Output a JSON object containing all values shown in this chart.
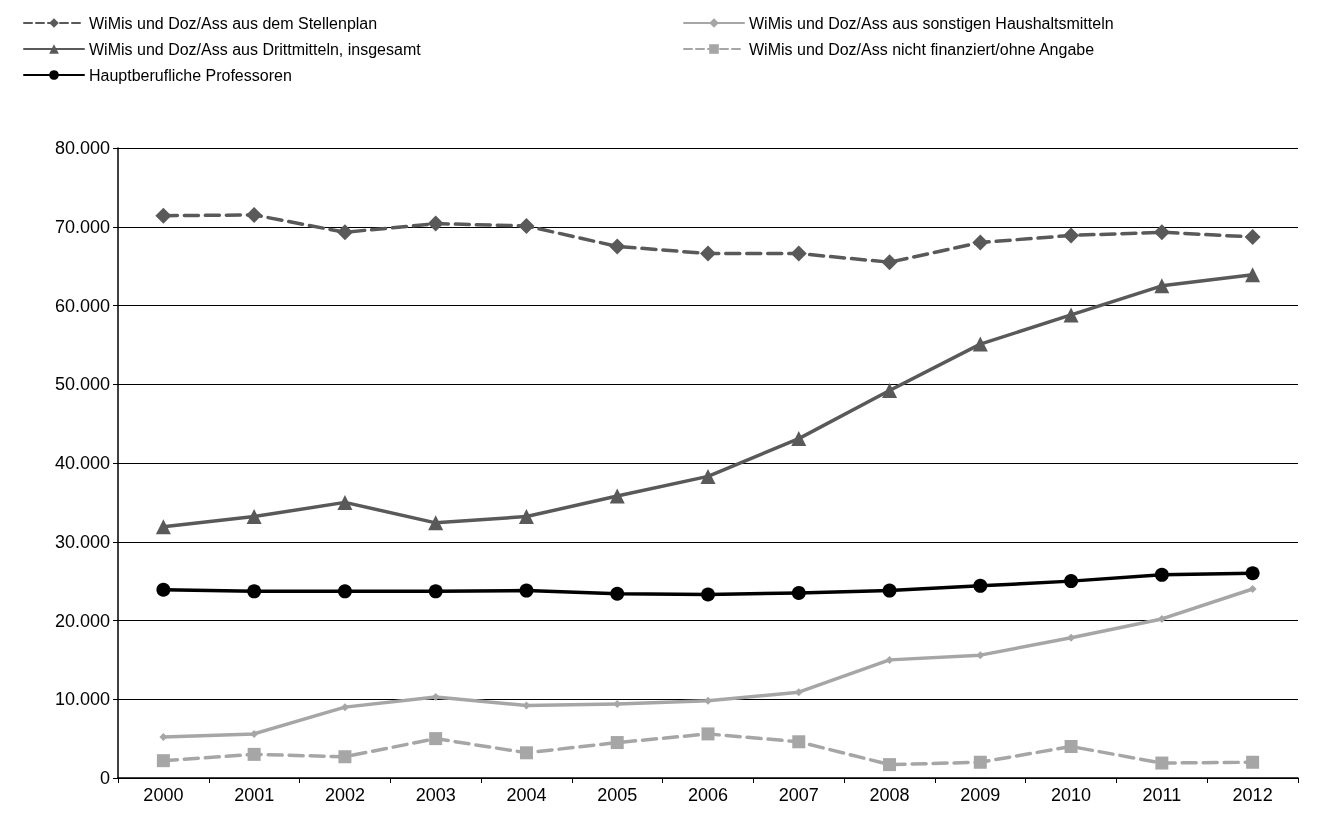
{
  "chart_data": {
    "type": "line",
    "categories": [
      "2000",
      "2001",
      "2002",
      "2003",
      "2004",
      "2005",
      "2006",
      "2007",
      "2008",
      "2009",
      "2010",
      "2011",
      "2012"
    ],
    "series": [
      {
        "name": "WiMis und Doz/Ass aus dem Stellenplan",
        "color": "#595959",
        "marker": "diamond",
        "line_style": "dashed",
        "values": [
          71400,
          71500,
          69300,
          70400,
          70100,
          67500,
          66600,
          66600,
          65500,
          68000,
          68900,
          69300,
          68700
        ]
      },
      {
        "name": "WiMis und Doz/Ass aus sonstigen Haushaltsmitteln",
        "color": "#a6a6a6",
        "marker": "diamond",
        "line_style": "solid",
        "values": [
          5200,
          5600,
          9000,
          10300,
          9200,
          9400,
          9800,
          10900,
          15000,
          15600,
          17800,
          20200,
          24000
        ]
      },
      {
        "name": "WiMis und Doz/Ass aus Drittmitteln, insgesamt",
        "color": "#595959",
        "marker": "triangle",
        "line_style": "solid",
        "values": [
          31900,
          33200,
          35000,
          32400,
          33200,
          35800,
          38300,
          43100,
          49200,
          55100,
          58800,
          62500,
          63900
        ]
      },
      {
        "name": "WiMis und Doz/Ass nicht finanziert/ohne Angabe",
        "color": "#a6a6a6",
        "marker": "square",
        "line_style": "dashed",
        "values": [
          2200,
          3000,
          2700,
          5000,
          3200,
          4500,
          5600,
          4600,
          1700,
          2000,
          4000,
          1900,
          2000
        ]
      },
      {
        "name": "Hauptberufliche Professoren",
        "color": "#000000",
        "marker": "circle",
        "line_style": "solid",
        "values": [
          23900,
          23700,
          23700,
          23700,
          23800,
          23400,
          23300,
          23500,
          23800,
          24400,
          25000,
          25800,
          26000
        ]
      }
    ],
    "ylim": [
      0,
      80000
    ],
    "yticks": [
      {
        "value": 0,
        "label": "0"
      },
      {
        "value": 10000,
        "label": "10.000"
      },
      {
        "value": 20000,
        "label": "20.000"
      },
      {
        "value": 30000,
        "label": "30.000"
      },
      {
        "value": 40000,
        "label": "40.000"
      },
      {
        "value": 50000,
        "label": "50.000"
      },
      {
        "value": 60000,
        "label": "60.000"
      },
      {
        "value": 70000,
        "label": "70.000"
      },
      {
        "value": 80000,
        "label": "80.000"
      }
    ],
    "grid": "y",
    "legend": "top"
  }
}
